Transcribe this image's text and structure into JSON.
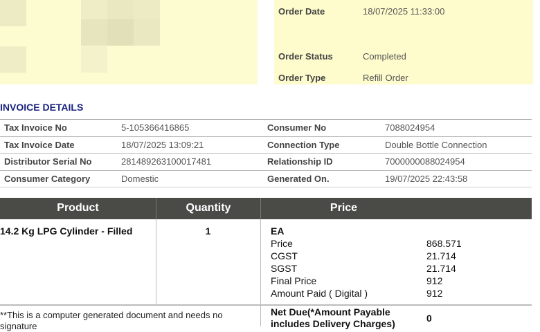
{
  "order": {
    "rows": [
      {
        "label": "Order Date",
        "value": "18/07/2025 11:33:00"
      },
      {
        "label": "Order Status",
        "value": "Completed"
      },
      {
        "label": "Order Type",
        "value": "Refill Order"
      }
    ]
  },
  "invoice": {
    "title": "INVOICE DETAILS",
    "rows": [
      {
        "l1": "Tax Invoice No",
        "v1": "5-105366416865",
        "l2": "Consumer No",
        "v2": "7088024954"
      },
      {
        "l1": "Tax Invoice Date",
        "v1": "18/07/2025 13:09:21",
        "l2": "Connection Type",
        "v2": "Double Bottle Connection"
      },
      {
        "l1": "Distributor Serial No",
        "v1": "281489263100017481",
        "l2": "Relationship ID",
        "v2": "7000000088024954"
      },
      {
        "l1": "Consumer Category",
        "v1": "Domestic",
        "l2": "Generated On.",
        "v2": "19/07/2025 22:43:58"
      }
    ]
  },
  "products": {
    "headers": [
      "Product",
      "Quantity",
      "Price"
    ],
    "item": {
      "name": "14.2 Kg LPG Cylinder - Filled",
      "qty": "1",
      "unit": "EA",
      "price_rows": [
        {
          "label": "Price",
          "value": "868.571"
        },
        {
          "label": "CGST",
          "value": "21.714"
        },
        {
          "label": "SGST",
          "value": "21.714"
        },
        {
          "label": "Final Price",
          "value": "912"
        },
        {
          "label": "Amount Paid ( Digital )",
          "value": "912"
        }
      ]
    },
    "note": "**This is a computer generated document and needs no signature",
    "net_due_label": "Net Due(*Amount Payable includes Delivery Charges)",
    "net_due_value": "0"
  }
}
